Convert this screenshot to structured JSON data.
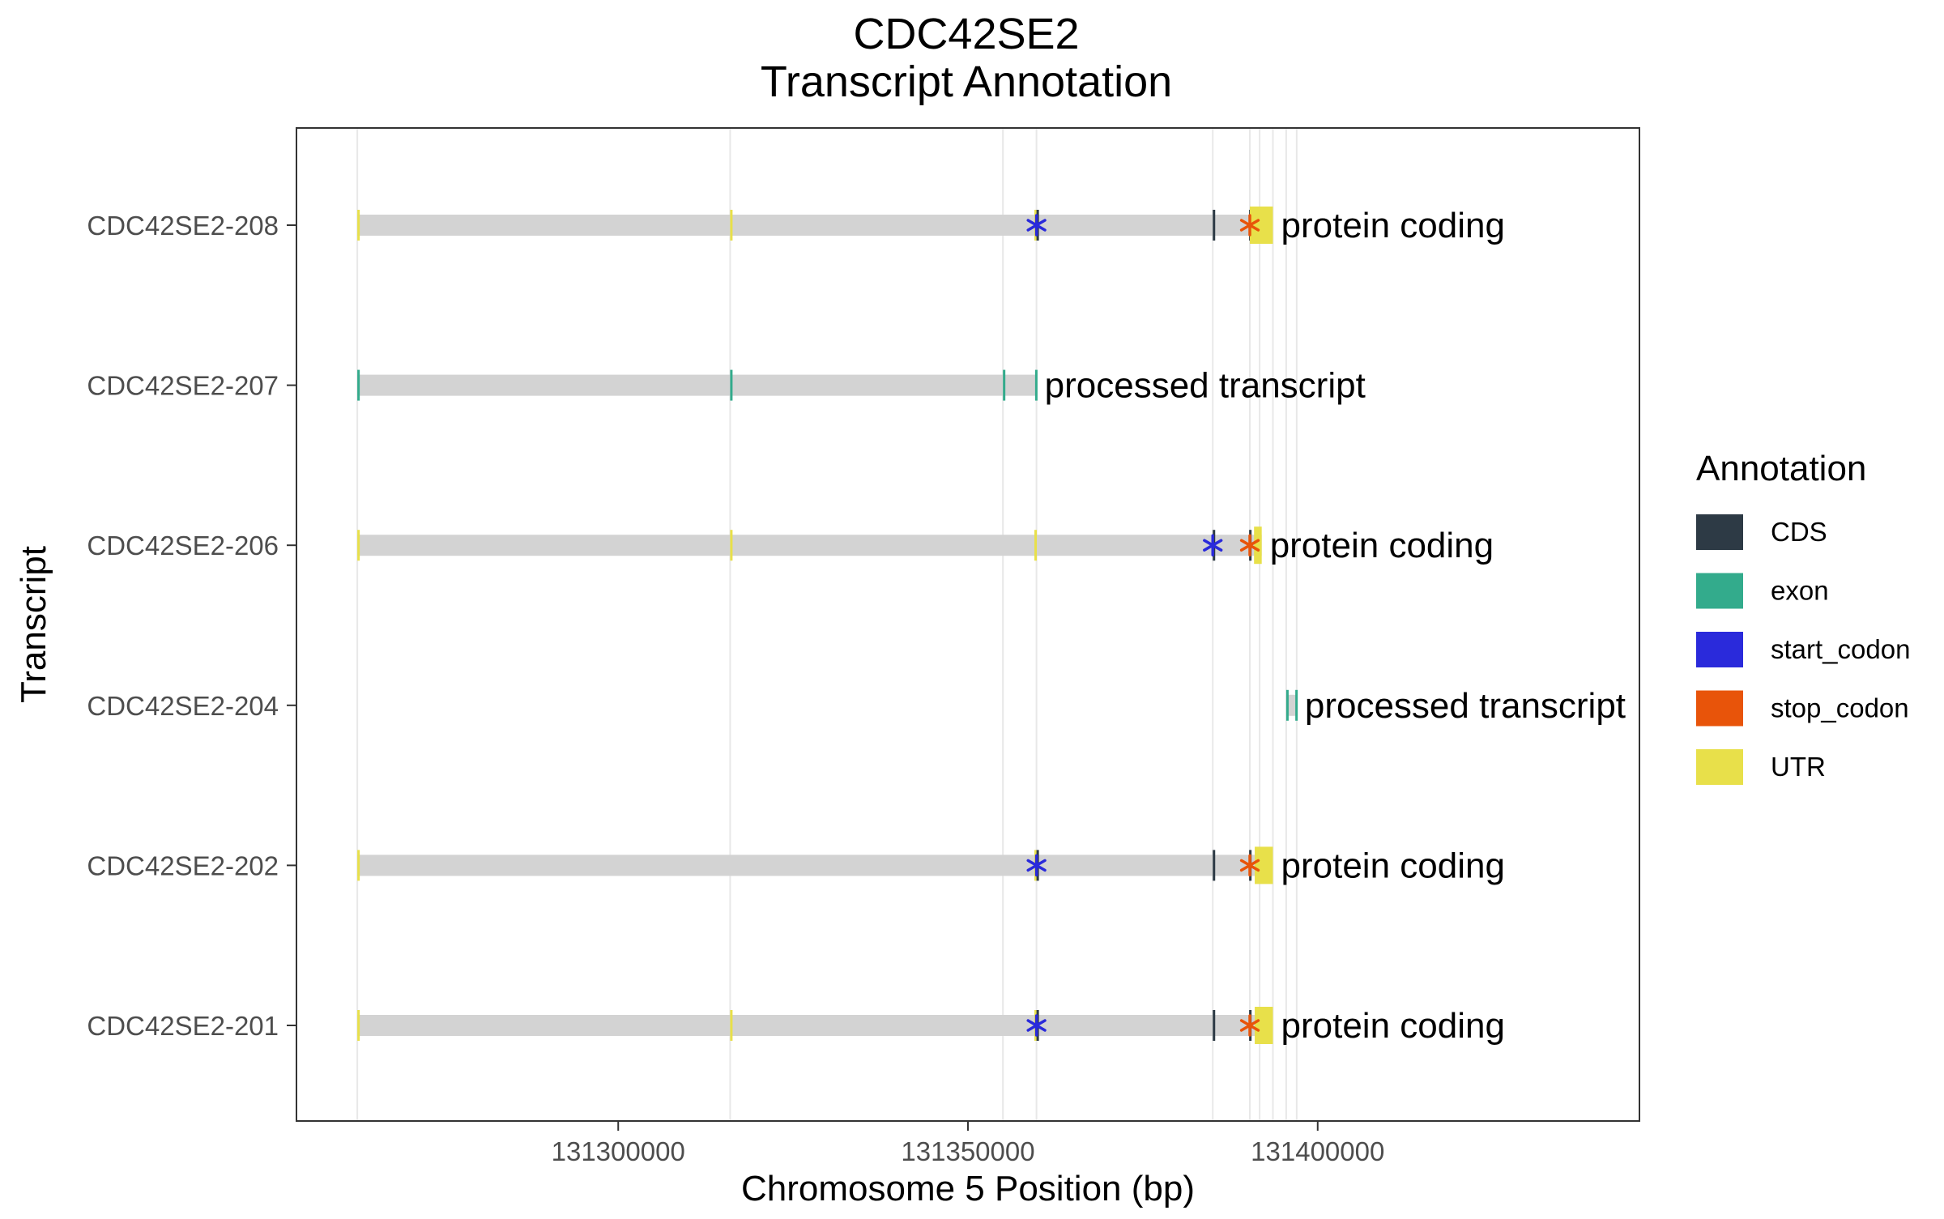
{
  "chart_data": {
    "type": "gene-track",
    "title": "CDC42SE2",
    "subtitle": "Transcript Annotation",
    "xlabel": "Chromosome 5 Position (bp)",
    "ylabel": "Transcript",
    "xlim": [
      131254000,
      131446000
    ],
    "x_ticks": [
      131300000,
      131350000,
      131400000
    ],
    "x_tick_labels": [
      "131300000",
      "131350000",
      "131400000"
    ],
    "grid": "vertical lines at feature boundaries",
    "legend": {
      "title": "Annotation",
      "placement": "right",
      "entries": [
        {
          "label": "CDS",
          "color": "#2d3a45"
        },
        {
          "label": "exon",
          "color": "#33ab8c"
        },
        {
          "label": "start_codon",
          "color": "#2a2adb"
        },
        {
          "label": "stop_codon",
          "color": "#e8540a"
        },
        {
          "label": "UTR",
          "color": "#e8e04a"
        }
      ]
    },
    "colors": {
      "transcript_body": "#d3d3d3",
      "grid": "#e8e8e8"
    },
    "feature_boundaries": [
      131262700,
      131316000,
      131355000,
      131359800,
      131385000,
      131390300,
      131391700,
      131393600,
      131395500,
      131397000
    ],
    "transcripts": [
      {
        "name": "CDC42SE2-208",
        "biotype": "protein coding",
        "start": 131262700,
        "end": 131393600,
        "features": [
          {
            "type": "UTR",
            "start": 131262700,
            "end": 131262900
          },
          {
            "type": "UTR",
            "start": 131316000,
            "end": 131316200
          },
          {
            "type": "UTR",
            "start": 131359500,
            "end": 131359800
          },
          {
            "type": "CDS",
            "start": 131359800,
            "end": 131360000
          },
          {
            "type": "CDS",
            "start": 131385000,
            "end": 131385200
          },
          {
            "type": "CDS",
            "start": 131390200,
            "end": 131390400
          },
          {
            "type": "UTR",
            "start": 131390300,
            "end": 131393600
          }
        ],
        "start_codon": 131359800,
        "stop_codon": 131390300
      },
      {
        "name": "CDC42SE2-207",
        "biotype": "processed transcript",
        "start": 131262700,
        "end": 131359800,
        "features": [
          {
            "type": "exon",
            "start": 131262700,
            "end": 131262900
          },
          {
            "type": "exon",
            "start": 131316000,
            "end": 131316200
          },
          {
            "type": "exon",
            "start": 131355000,
            "end": 131355200
          },
          {
            "type": "exon",
            "start": 131359600,
            "end": 131359800
          }
        ]
      },
      {
        "name": "CDC42SE2-206",
        "biotype": "protein coding",
        "start": 131262700,
        "end": 131392000,
        "features": [
          {
            "type": "UTR",
            "start": 131262700,
            "end": 131262900
          },
          {
            "type": "UTR",
            "start": 131316000,
            "end": 131316200
          },
          {
            "type": "UTR",
            "start": 131359500,
            "end": 131359800
          },
          {
            "type": "CDS",
            "start": 131385000,
            "end": 131385200
          },
          {
            "type": "CDS",
            "start": 131390200,
            "end": 131390400
          },
          {
            "type": "UTR",
            "start": 131390900,
            "end": 131392000
          }
        ],
        "start_codon": 131385000,
        "stop_codon": 131390300
      },
      {
        "name": "CDC42SE2-204",
        "biotype": "processed transcript",
        "start": 131395500,
        "end": 131397000,
        "features": [
          {
            "type": "exon",
            "start": 131395500,
            "end": 131395700
          },
          {
            "type": "exon",
            "start": 131396800,
            "end": 131397000
          }
        ]
      },
      {
        "name": "CDC42SE2-202",
        "biotype": "protein coding",
        "start": 131262700,
        "end": 131393600,
        "features": [
          {
            "type": "UTR",
            "start": 131262700,
            "end": 131262900
          },
          {
            "type": "UTR",
            "start": 131359500,
            "end": 131359800
          },
          {
            "type": "CDS",
            "start": 131359800,
            "end": 131360000
          },
          {
            "type": "CDS",
            "start": 131385000,
            "end": 131385200
          },
          {
            "type": "CDS",
            "start": 131390200,
            "end": 131390400
          },
          {
            "type": "UTR",
            "start": 131391000,
            "end": 131393600
          }
        ],
        "start_codon": 131359800,
        "stop_codon": 131390300
      },
      {
        "name": "CDC42SE2-201",
        "biotype": "protein coding",
        "start": 131262700,
        "end": 131393600,
        "features": [
          {
            "type": "UTR",
            "start": 131262700,
            "end": 131262900
          },
          {
            "type": "UTR",
            "start": 131316000,
            "end": 131316200
          },
          {
            "type": "UTR",
            "start": 131359500,
            "end": 131359800
          },
          {
            "type": "CDS",
            "start": 131359800,
            "end": 131360000
          },
          {
            "type": "CDS",
            "start": 131385000,
            "end": 131385200
          },
          {
            "type": "CDS",
            "start": 131390200,
            "end": 131390400
          },
          {
            "type": "UTR",
            "start": 131391000,
            "end": 131393600
          }
        ],
        "start_codon": 131359800,
        "stop_codon": 131390300
      }
    ]
  }
}
